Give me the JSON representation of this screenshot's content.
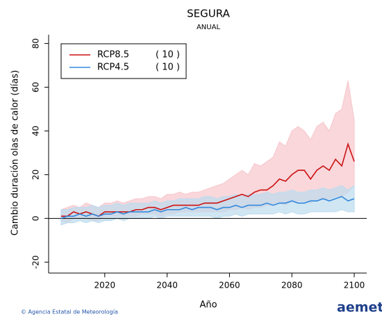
{
  "chart_data": {
    "type": "line",
    "title": "SEGURA",
    "subtitle": "ANUAL",
    "xlabel": "Año",
    "ylabel": "Cambio duración olas de calor (días)",
    "x": [
      2006,
      2008,
      2010,
      2012,
      2014,
      2016,
      2018,
      2020,
      2022,
      2024,
      2026,
      2028,
      2030,
      2032,
      2034,
      2036,
      2038,
      2040,
      2042,
      2044,
      2046,
      2048,
      2050,
      2052,
      2054,
      2056,
      2058,
      2060,
      2062,
      2064,
      2066,
      2068,
      2070,
      2072,
      2074,
      2076,
      2078,
      2080,
      2082,
      2084,
      2086,
      2088,
      2090,
      2092,
      2094,
      2096,
      2098,
      2100
    ],
    "series": [
      {
        "name": "RCP8.5",
        "count_label": "( 10 )",
        "color": "#cc1111",
        "band_color": "#f7c6cc",
        "values": [
          1,
          1,
          3,
          2,
          3,
          2,
          1,
          3,
          3,
          3,
          3,
          3,
          4,
          4,
          5,
          5,
          4,
          5,
          6,
          6,
          6,
          6,
          6,
          7,
          7,
          7,
          8,
          9,
          10,
          11,
          10,
          12,
          13,
          13,
          15,
          18,
          17,
          20,
          22,
          22,
          18,
          22,
          24,
          22,
          27,
          24,
          34,
          26
        ],
        "upper": [
          4,
          5,
          6,
          5,
          7,
          6,
          5,
          7,
          7,
          8,
          7,
          8,
          9,
          9,
          10,
          10,
          9,
          11,
          11,
          12,
          11,
          12,
          12,
          13,
          14,
          15,
          16,
          18,
          20,
          22,
          20,
          25,
          24,
          26,
          28,
          35,
          33,
          40,
          42,
          40,
          36,
          42,
          44,
          40,
          48,
          50,
          63,
          45
        ],
        "lower": [
          -1,
          -2,
          0,
          0,
          0,
          -1,
          -1,
          1,
          1,
          1,
          1,
          1,
          1,
          2,
          2,
          2,
          1,
          2,
          2,
          3,
          3,
          3,
          3,
          3,
          3,
          3,
          3,
          4,
          4,
          5,
          4,
          5,
          5,
          6,
          6,
          7,
          6,
          8,
          8,
          8,
          7,
          9,
          9,
          9,
          10,
          10,
          12,
          15
        ]
      },
      {
        "name": "RCP4.5",
        "count_label": "( 10 )",
        "color": "#3388dd",
        "band_color": "#bcdcee",
        "values": [
          0,
          1,
          1,
          2,
          1,
          2,
          1,
          2,
          2,
          3,
          2,
          3,
          3,
          3,
          3,
          4,
          3,
          4,
          4,
          4,
          5,
          4,
          5,
          5,
          5,
          4,
          5,
          5,
          6,
          5,
          6,
          6,
          6,
          7,
          6,
          7,
          7,
          8,
          7,
          7,
          8,
          8,
          9,
          8,
          9,
          10,
          8,
          9
        ],
        "upper": [
          4,
          4,
          5,
          5,
          5,
          6,
          5,
          6,
          6,
          7,
          6,
          7,
          7,
          7,
          7,
          8,
          7,
          8,
          8,
          9,
          9,
          9,
          9,
          10,
          10,
          9,
          10,
          10,
          11,
          10,
          11,
          11,
          11,
          12,
          11,
          12,
          12,
          13,
          12,
          12,
          13,
          13,
          14,
          13,
          14,
          15,
          13,
          15
        ],
        "lower": [
          -3,
          -2,
          -2,
          -1,
          -2,
          -1,
          -2,
          -1,
          -1,
          0,
          -1,
          0,
          0,
          0,
          0,
          1,
          0,
          1,
          1,
          1,
          1,
          1,
          1,
          1,
          1,
          0,
          1,
          1,
          2,
          1,
          2,
          2,
          2,
          2,
          2,
          3,
          2,
          3,
          2,
          2,
          3,
          3,
          3,
          3,
          3,
          4,
          3,
          3
        ]
      }
    ],
    "xlim": [
      2002,
      2104
    ],
    "xticks": [
      2020,
      2040,
      2060,
      2080,
      2100
    ],
    "ylim": [
      -25,
      84
    ],
    "yticks": [
      -20,
      0,
      20,
      40,
      60,
      80
    ],
    "legend": "top-left",
    "grid": false,
    "footer": {
      "credit": "© Agencia Estatal de Meteorología",
      "logo": "aemet"
    }
  }
}
